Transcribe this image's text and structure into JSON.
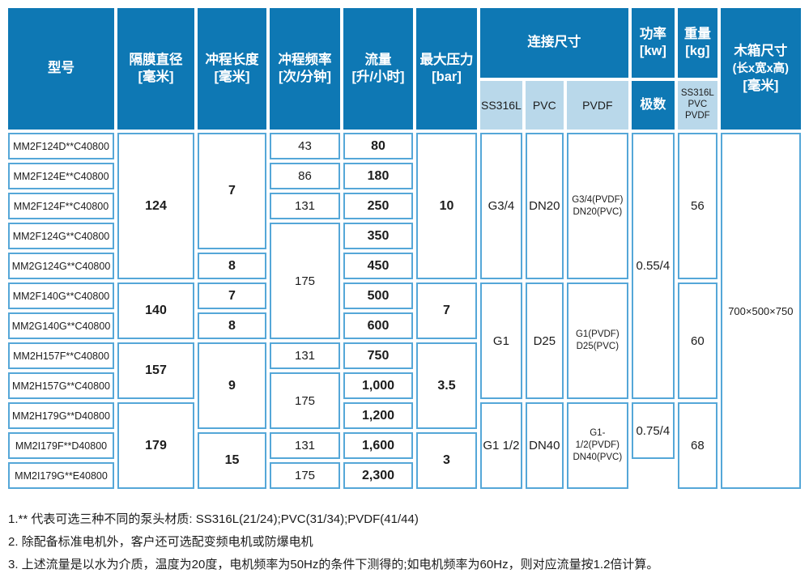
{
  "colors": {
    "header_blue": "#0e78b4",
    "subheader_blue": "#b9d8ea",
    "cell_border_blue": "#55a7d8",
    "text_dark": "#1c1c1c"
  },
  "header": {
    "model": "型号",
    "diaphragm": "隔膜直径",
    "diaphragm_unit": "[毫米]",
    "stroke_length": "冲程长度",
    "stroke_length_unit": "[毫米]",
    "stroke_freq": "冲程频率",
    "stroke_freq_unit": "[次/分钟]",
    "flow": "流量",
    "flow_unit": "[升/小时]",
    "max_pressure": "最大压力",
    "max_pressure_unit": "[bar]",
    "connection": "连接尺寸",
    "connection_sub": [
      "SS316L",
      "PVC",
      "PVDF"
    ],
    "power": "功率",
    "power_unit": "[kw]",
    "poles": "极数",
    "weight": "重量",
    "weight_unit": "[kg]",
    "weight_sub": [
      "SS316L",
      "PVC",
      "PVDF"
    ],
    "box": "木箱尺寸",
    "box_dims": "(长x宽x高)",
    "box_unit": "[毫米]"
  },
  "table": {
    "rows": [
      [
        {
          "n": "model",
          "v": "MM2F124D**C40800",
          "c": "model"
        },
        {
          "n": "diameter",
          "v": "124",
          "rs": 5,
          "c": "b"
        },
        {
          "n": "stroke-length",
          "v": "7",
          "rs": 4,
          "c": "b"
        },
        {
          "n": "stroke-frequency",
          "v": "43"
        },
        {
          "n": "flow",
          "v": "80",
          "c": "b"
        },
        {
          "n": "pressure",
          "v": "10",
          "rs": 5,
          "c": "b"
        },
        {
          "n": "conn-ss316l",
          "v": "G3/4",
          "rs": 5
        },
        {
          "n": "conn-pvc",
          "v": "DN20",
          "rs": 5
        },
        {
          "n": "conn-pvdf",
          "v": "G3/4(PVDF)\nDN20(PVC)",
          "rs": 5,
          "c": "sm"
        },
        {
          "n": "power",
          "v": "0.55/4",
          "rs": 9
        },
        {
          "n": "weight",
          "v": "56",
          "rs": 5
        },
        {
          "n": "box",
          "v": "700×500×750",
          "rs": 12,
          "c": "boxv"
        }
      ],
      [
        {
          "n": "model",
          "v": "MM2F124E**C40800",
          "c": "model"
        },
        {
          "n": "stroke-frequency",
          "v": "86"
        },
        {
          "n": "flow",
          "v": "180",
          "c": "b"
        }
      ],
      [
        {
          "n": "model",
          "v": "MM2F124F**C40800",
          "c": "model"
        },
        {
          "n": "stroke-frequency",
          "v": "131"
        },
        {
          "n": "flow",
          "v": "250",
          "c": "b"
        }
      ],
      [
        {
          "n": "model",
          "v": "MM2F124G**C40800",
          "c": "model"
        },
        {
          "n": "stroke-frequency",
          "v": "175",
          "rs": 4
        },
        {
          "n": "flow",
          "v": "350",
          "c": "b"
        }
      ],
      [
        {
          "n": "model",
          "v": "MM2G124G**C40800",
          "c": "model"
        },
        {
          "n": "stroke-length",
          "v": "8",
          "c": "b"
        },
        {
          "n": "flow",
          "v": "450",
          "c": "b"
        }
      ],
      [
        {
          "n": "model",
          "v": "MM2F140G**C40800",
          "c": "model"
        },
        {
          "n": "diameter",
          "v": "140",
          "rs": 2,
          "c": "b"
        },
        {
          "n": "stroke-length",
          "v": "7",
          "c": "b"
        },
        {
          "n": "flow",
          "v": "500",
          "c": "b"
        },
        {
          "n": "pressure",
          "v": "7",
          "rs": 2,
          "c": "b"
        },
        {
          "n": "conn-ss316l",
          "v": "G1",
          "rs": 4
        },
        {
          "n": "conn-pvc",
          "v": "D25",
          "rs": 4
        },
        {
          "n": "conn-pvdf",
          "v": "G1(PVDF)\nD25(PVC)",
          "rs": 4,
          "c": "sm"
        },
        {
          "n": "weight",
          "v": "60",
          "rs": 4
        }
      ],
      [
        {
          "n": "model",
          "v": "MM2G140G**C40800",
          "c": "model"
        },
        {
          "n": "stroke-length",
          "v": "8",
          "c": "b"
        },
        {
          "n": "flow",
          "v": "600",
          "c": "b"
        }
      ],
      [
        {
          "n": "model",
          "v": "MM2H157F**C40800",
          "c": "model"
        },
        {
          "n": "diameter",
          "v": "157",
          "rs": 2,
          "c": "b"
        },
        {
          "n": "stroke-length",
          "v": "9",
          "rs": 3,
          "c": "b"
        },
        {
          "n": "stroke-frequency",
          "v": "131"
        },
        {
          "n": "flow",
          "v": "750",
          "c": "b"
        },
        {
          "n": "pressure",
          "v": "3.5",
          "rs": 3,
          "c": "b"
        }
      ],
      [
        {
          "n": "model",
          "v": "MM2H157G**C40800",
          "c": "model"
        },
        {
          "n": "stroke-frequency",
          "v": "175",
          "rs": 2
        },
        {
          "n": "flow",
          "v": "1,000",
          "c": "b"
        }
      ],
      [
        {
          "n": "model",
          "v": "MM2H179G**D40800",
          "c": "model"
        },
        {
          "n": "diameter",
          "v": "179",
          "rs": 3,
          "c": "b"
        },
        {
          "n": "flow",
          "v": "1,200",
          "c": "b"
        },
        {
          "n": "conn-ss316l",
          "v": "G1 1/2",
          "rs": 3
        },
        {
          "n": "conn-pvc",
          "v": "DN40",
          "rs": 3
        },
        {
          "n": "conn-pvdf",
          "v": "G1-1/2(PVDF)\nDN40(PVC)",
          "rs": 3,
          "c": "sm"
        },
        {
          "n": "power",
          "v": "0.75/4",
          "rs": 2
        },
        {
          "n": "weight",
          "v": "68",
          "rs": 3
        }
      ],
      [
        {
          "n": "model",
          "v": "MM2I179F**D40800",
          "c": "model"
        },
        {
          "n": "stroke-length",
          "v": "15",
          "rs": 2,
          "c": "b"
        },
        {
          "n": "stroke-frequency",
          "v": "131"
        },
        {
          "n": "flow",
          "v": "1,600",
          "c": "b"
        },
        {
          "n": "pressure",
          "v": "3",
          "rs": 2,
          "c": "b"
        }
      ],
      [
        {
          "n": "model",
          "v": "MM2I179G**E40800",
          "c": "model"
        },
        {
          "n": "stroke-frequency",
          "v": "175"
        },
        {
          "n": "flow",
          "v": "2,300",
          "c": "b"
        }
      ]
    ]
  },
  "footnotes": [
    "1.** 代表可选三种不同的泵头材质: SS316L(21/24);PVC(31/34);PVDF(41/44)",
    "2. 除配备标准电机外，客户还可选配变频电机或防爆电机",
    "3. 上述流量是以水为介质，温度为20度，电机频率为50Hz的条件下测得的;如电机频率为60Hz，则对应流量按1.2倍计算。"
  ]
}
